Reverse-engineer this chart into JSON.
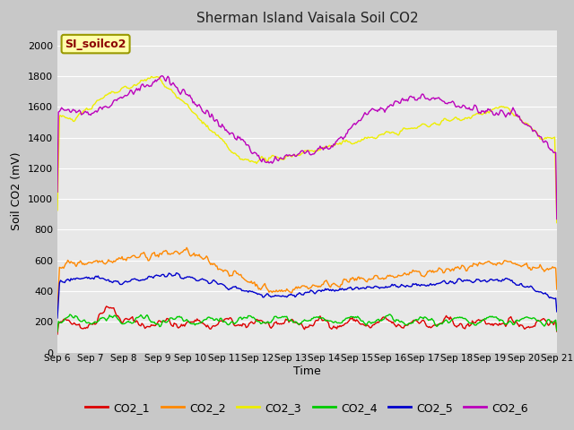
{
  "title": "Sherman Island Vaisala Soil CO2",
  "xlabel": "Time",
  "ylabel": "Soil CO2 (mV)",
  "label_box": "SI_soilco2",
  "ylim": [
    0,
    2100
  ],
  "yticks": [
    0,
    200,
    400,
    600,
    800,
    1000,
    1200,
    1400,
    1600,
    1800,
    2000
  ],
  "series_colors": {
    "CO2_1": "#dd0000",
    "CO2_2": "#ff8800",
    "CO2_3": "#eeee00",
    "CO2_4": "#00cc00",
    "CO2_5": "#0000cc",
    "CO2_6": "#bb00bb"
  },
  "fig_bg": "#c8c8c8",
  "plot_bg": "#e8e8e8",
  "n_points": 480,
  "x_start": 6.0,
  "x_end": 21.0,
  "xtick_positions": [
    6,
    7,
    8,
    9,
    10,
    11,
    12,
    13,
    14,
    15,
    16,
    17,
    18,
    19,
    20,
    21
  ],
  "xtick_labels": [
    "Sep 6",
    "Sep 7",
    "Sep 8",
    "Sep 9",
    "Sep 10",
    "Sep 11",
    "Sep 12",
    "Sep 13",
    "Sep 14",
    "Sep 15",
    "Sep 16",
    "Sep 17",
    "Sep 18",
    "Sep 19",
    "Sep 20",
    "Sep 21"
  ]
}
